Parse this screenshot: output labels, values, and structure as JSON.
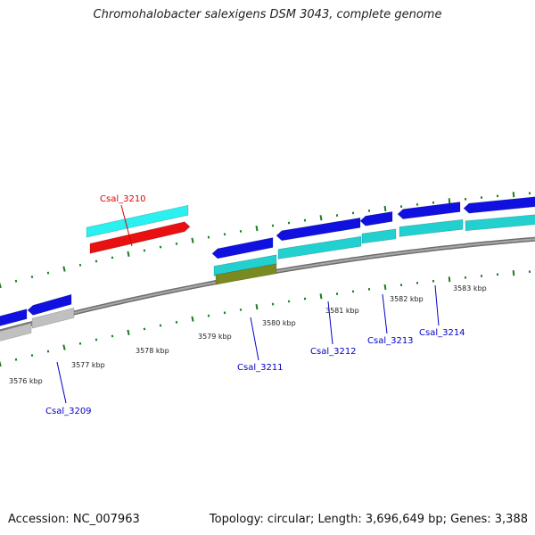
{
  "title": "Chromohalobacter salexigens DSM 3043, complete genome",
  "footer": {
    "accession": "Accession: NC_007963",
    "summary": "Topology: circular; Length: 3,696,649 bp; Genes: 3,388"
  },
  "colors": {
    "backbone": "#808080",
    "tick": "#1f7a1f",
    "gene_blue": "#1010e0",
    "gene_cyan": "#22d0d0",
    "gene_cyan_bright": "#2af0f0",
    "gene_red": "#e81010",
    "gene_gray": "#c0c0c0",
    "gene_olive": "#7a8a20",
    "label_blue": "#0000c8",
    "label_red": "#e00000"
  },
  "tick_labels": [
    "3576 kbp",
    "3577 kbp",
    "3578 kbp",
    "3579 kbp",
    "3580 kbp",
    "3581 kbp",
    "3582 kbp",
    "3583 kbp"
  ],
  "gene_labels": [
    {
      "name": "Csal_3210",
      "color": "red"
    },
    {
      "name": "Csal_3209",
      "color": "blue"
    },
    {
      "name": "Csal_3211",
      "color": "blue"
    },
    {
      "name": "Csal_3212",
      "color": "blue"
    },
    {
      "name": "Csal_3213",
      "color": "blue"
    },
    {
      "name": "Csal_3214",
      "color": "blue"
    }
  ]
}
